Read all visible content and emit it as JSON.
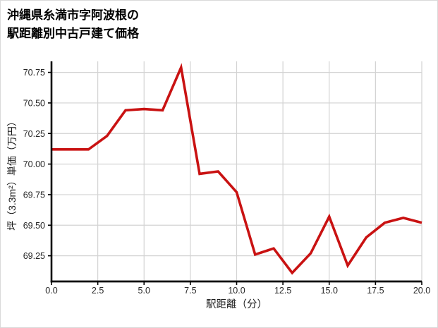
{
  "chart_data": {
    "type": "line",
    "title": "沖縄県糸満市字阿波根の\n駅距離別中古戸建て価格",
    "title_lines": [
      "沖縄県糸満市字阿波根の",
      "駅距離別中古戸建て価格"
    ],
    "xlabel": "駅距離（分）",
    "ylabel": "坪（3.3m²）単価（万円）",
    "x": [
      0,
      1,
      2,
      3,
      4,
      5,
      6,
      7,
      8,
      9,
      10,
      11,
      12,
      13,
      14,
      15,
      16,
      17,
      18,
      19,
      20
    ],
    "y": [
      70.12,
      70.12,
      70.12,
      70.23,
      70.44,
      70.45,
      70.44,
      70.79,
      69.92,
      69.94,
      69.77,
      69.26,
      69.31,
      69.11,
      69.27,
      69.57,
      69.17,
      69.4,
      69.52,
      69.56,
      69.52
    ],
    "x_ticks": [
      0,
      2.5,
      5,
      7.5,
      10,
      12.5,
      15,
      17.5,
      20
    ],
    "x_tick_labels": [
      "0.0",
      "2.5",
      "5.0",
      "7.5",
      "10.0",
      "12.5",
      "15.0",
      "17.5",
      "20.0"
    ],
    "y_ticks": [
      69.25,
      69.5,
      69.75,
      70.0,
      70.25,
      70.5,
      70.75
    ],
    "y_tick_labels": [
      "69.25",
      "69.50",
      "69.75",
      "70.00",
      "70.25",
      "70.50",
      "70.75"
    ],
    "xlim": [
      0,
      20
    ],
    "ylim": [
      69.04,
      70.84
    ],
    "grid": true,
    "legend": false,
    "line_color": "#c91212",
    "grid_color": "#d3d3d3",
    "axis_color": "#000000",
    "tick_label_color": "#262626"
  }
}
